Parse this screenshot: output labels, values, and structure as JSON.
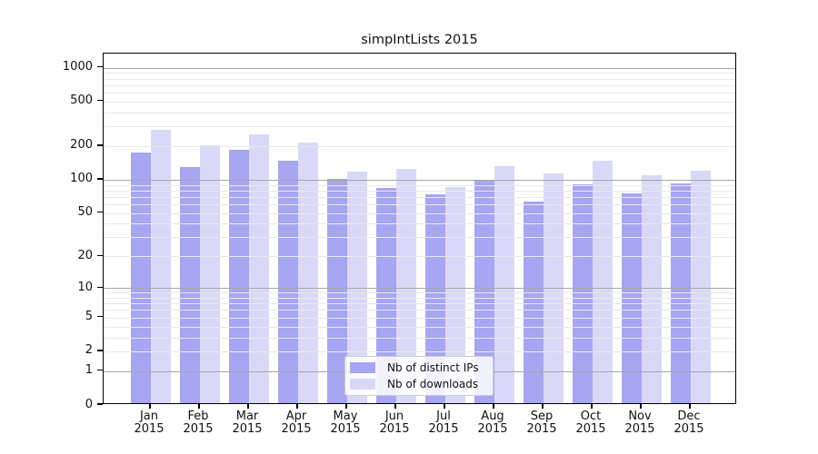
{
  "title": "simpIntLists 2015",
  "chart_data": {
    "type": "bar",
    "title": "simpIntLists 2015",
    "y_scale": "log1p",
    "categories": [
      "Jan",
      "Feb",
      "Mar",
      "Apr",
      "May",
      "Jun",
      "Jul",
      "Aug",
      "Sep",
      "Oct",
      "Nov",
      "Dec"
    ],
    "x_year_label": "2015",
    "series": [
      {
        "name": "Nb of distinct IPs",
        "color": "#a6a6f2",
        "values": [
          170,
          126,
          180,
          143,
          98,
          82,
          71,
          96,
          61,
          87,
          73,
          89
        ]
      },
      {
        "name": "Nb of downloads",
        "color": "#d9d9f7",
        "values": [
          271,
          197,
          247,
          207,
          113,
          120,
          83,
          127,
          109,
          143,
          106,
          116
        ]
      }
    ],
    "y_ticks": [
      1000,
      500,
      200,
      100,
      50,
      20,
      10,
      5,
      2,
      1,
      0
    ],
    "ylim": [
      0,
      1337
    ],
    "grid": {
      "major_values": [
        1,
        10,
        100,
        1000
      ],
      "minor_multiples": [
        2,
        3,
        4,
        5,
        6,
        7,
        8,
        9
      ],
      "minor_decades": [
        1,
        10,
        100
      ]
    },
    "legend_position": "bottom-center",
    "xlabel": "",
    "ylabel": ""
  },
  "legend": {
    "items": [
      {
        "label": "Nb of distinct IPs"
      },
      {
        "label": "Nb of downloads"
      }
    ]
  }
}
